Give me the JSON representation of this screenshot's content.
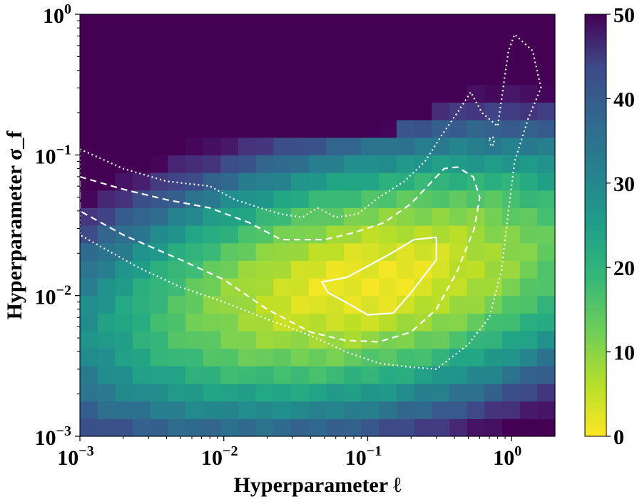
{
  "chart_data": {
    "type": "heatmap",
    "title": "",
    "xlabel": "Hyperparameter ℓ",
    "ylabel": "Hyperparameter σ_f",
    "xscale": "log",
    "yscale": "log",
    "xlim": [
      0.001,
      2
    ],
    "ylim": [
      0.001,
      1
    ],
    "x_ticks": [
      {
        "value": 0.001,
        "base": "10",
        "exp": "−3"
      },
      {
        "value": 0.01,
        "base": "10",
        "exp": "−2"
      },
      {
        "value": 0.1,
        "base": "10",
        "exp": "−1"
      },
      {
        "value": 1,
        "base": "10",
        "exp": "0"
      }
    ],
    "y_ticks": [
      {
        "value": 0.001,
        "base": "10",
        "exp": "−3"
      },
      {
        "value": 0.01,
        "base": "10",
        "exp": "−2"
      },
      {
        "value": 0.1,
        "base": "10",
        "exp": "−1"
      },
      {
        "value": 1,
        "base": "10",
        "exp": "0"
      }
    ],
    "colorbar": {
      "min": 0,
      "max": 50,
      "ticks": [
        "0",
        "10",
        "20",
        "30",
        "40",
        "50"
      ],
      "colormap": "viridis (reversed)"
    },
    "grid": {
      "nx": 27,
      "ny": 24
    },
    "contours": [
      {
        "level": "innermost",
        "style": "solid",
        "color": "#ffffff",
        "points": [
          [
            0.048,
            0.0125
          ],
          [
            0.072,
            0.0135
          ],
          [
            0.14,
            0.0195
          ],
          [
            0.21,
            0.025
          ],
          [
            0.3,
            0.026
          ],
          [
            0.3,
            0.018
          ],
          [
            0.2,
            0.0105
          ],
          [
            0.15,
            0.0075
          ],
          [
            0.1,
            0.0073
          ],
          [
            0.07,
            0.009
          ],
          [
            0.053,
            0.0105
          ]
        ]
      },
      {
        "level": "middle",
        "style": "dashed",
        "color": "#ffffff",
        "points": [
          [
            0.001,
            0.07
          ],
          [
            0.002,
            0.057
          ],
          [
            0.004,
            0.048
          ],
          [
            0.008,
            0.042
          ],
          [
            0.015,
            0.033
          ],
          [
            0.025,
            0.025
          ],
          [
            0.05,
            0.025
          ],
          [
            0.08,
            0.028
          ],
          [
            0.13,
            0.033
          ],
          [
            0.2,
            0.045
          ],
          [
            0.28,
            0.065
          ],
          [
            0.34,
            0.08
          ],
          [
            0.42,
            0.082
          ],
          [
            0.54,
            0.07
          ],
          [
            0.6,
            0.05
          ],
          [
            0.55,
            0.03
          ],
          [
            0.42,
            0.015
          ],
          [
            0.3,
            0.008
          ],
          [
            0.2,
            0.0055
          ],
          [
            0.12,
            0.0047
          ],
          [
            0.07,
            0.0048
          ],
          [
            0.04,
            0.0055
          ],
          [
            0.02,
            0.008
          ],
          [
            0.01,
            0.013
          ],
          [
            0.005,
            0.018
          ],
          [
            0.002,
            0.027
          ],
          [
            0.001,
            0.04
          ]
        ]
      },
      {
        "level": "outer",
        "style": "dotted",
        "color": "#ffffff",
        "points": [
          [
            0.001,
            0.11
          ],
          [
            0.002,
            0.08
          ],
          [
            0.004,
            0.065
          ],
          [
            0.008,
            0.06
          ],
          [
            0.012,
            0.048
          ],
          [
            0.018,
            0.042
          ],
          [
            0.025,
            0.038
          ],
          [
            0.035,
            0.036
          ],
          [
            0.045,
            0.042
          ],
          [
            0.06,
            0.036
          ],
          [
            0.085,
            0.038
          ],
          [
            0.12,
            0.05
          ],
          [
            0.18,
            0.065
          ],
          [
            0.25,
            0.09
          ],
          [
            0.33,
            0.14
          ],
          [
            0.42,
            0.2
          ],
          [
            0.52,
            0.28
          ],
          [
            0.62,
            0.2
          ],
          [
            0.8,
            0.16
          ],
          [
            0.95,
            0.55
          ],
          [
            1.05,
            0.72
          ],
          [
            1.4,
            0.55
          ],
          [
            1.6,
            0.3
          ],
          [
            1.3,
            0.18
          ],
          [
            1.05,
            0.09
          ],
          [
            0.95,
            0.04
          ],
          [
            0.85,
            0.015
          ],
          [
            0.7,
            0.007
          ],
          [
            0.5,
            0.0045
          ],
          [
            0.3,
            0.003
          ],
          [
            0.2,
            0.0031
          ],
          [
            0.12,
            0.0033
          ],
          [
            0.07,
            0.004
          ],
          [
            0.04,
            0.0052
          ],
          [
            0.02,
            0.0068
          ],
          [
            0.01,
            0.009
          ],
          [
            0.005,
            0.0115
          ],
          [
            0.0025,
            0.016
          ],
          [
            0.001,
            0.027
          ]
        ]
      },
      {
        "level": "island",
        "style": "dotted",
        "color": "#ffffff",
        "points": [
          [
            0.7,
            0.13
          ],
          [
            0.74,
            0.135
          ],
          [
            0.76,
            0.12
          ],
          [
            0.72,
            0.115
          ]
        ]
      }
    ]
  }
}
